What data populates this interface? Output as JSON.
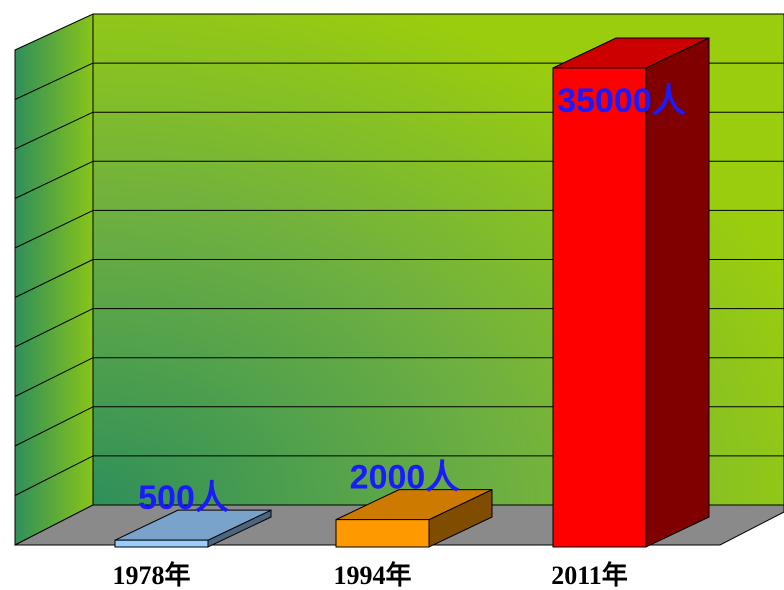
{
  "chart_data": {
    "type": "bar3d",
    "categories": [
      "1978年",
      "1994年",
      "2011年"
    ],
    "values": [
      500,
      2000,
      35000
    ],
    "value_labels": [
      "500人",
      "2000人",
      "35000人"
    ],
    "colors": [
      "#99ccff",
      "#ff9900",
      "#ff0000"
    ],
    "ylim": [
      0,
      35000
    ]
  }
}
